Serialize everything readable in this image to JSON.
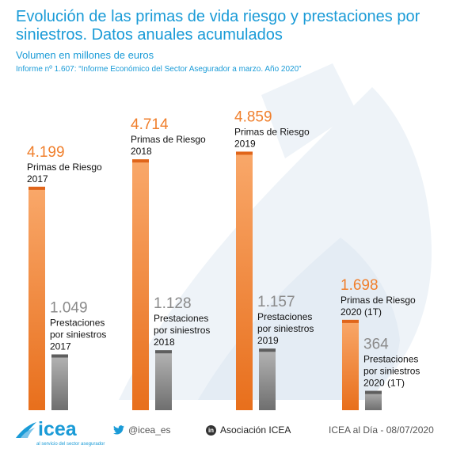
{
  "header": {
    "title": "Evolución de las primas de vida riesgo y prestaciones por siniestros. Datos anuales acumulados",
    "subtitle": "Volumen en millones de euros",
    "source": "Informe nº 1.607: “Informe Económico del Sector Asegurador a marzo. Año 2020”"
  },
  "chart_data": {
    "type": "bar",
    "title": "Evolución de las primas de vida riesgo y prestaciones por siniestros. Datos anuales acumulados",
    "subtitle": "Volumen en millones de euros",
    "categories": [
      "2017",
      "2018",
      "2019",
      "2020 (1T)"
    ],
    "series": [
      {
        "name": "Primas de Riesgo",
        "color": "#f07f2c",
        "values": [
          4199,
          4714,
          4859,
          1698
        ],
        "value_labels": [
          "4.199",
          "4.714",
          "4.859",
          "1.698"
        ],
        "labels": [
          [
            "Primas de Riesgo",
            "2017"
          ],
          [
            "Primas de Riesgo",
            "2018"
          ],
          [
            "Primas de Riesgo",
            "2019"
          ],
          [
            "Primas de Riesgo",
            "2020 (1T)"
          ]
        ]
      },
      {
        "name": "Prestaciones por siniestros",
        "color": "#8a8a8a",
        "values": [
          1049,
          1128,
          1157,
          364
        ],
        "value_labels": [
          "1.049",
          "1.128",
          "1.157",
          "364"
        ],
        "labels": [
          [
            "Prestaciones",
            "por siniestros",
            "2017"
          ],
          [
            "Prestaciones",
            "por siniestros",
            "2018"
          ],
          [
            "Prestaciones",
            "por siniestros",
            "2019"
          ],
          [
            "Prestaciones",
            "por siniestros",
            "2020 (1T)"
          ]
        ]
      }
    ],
    "axes": "none",
    "grid": false,
    "legend": "none"
  },
  "footer": {
    "logo_text": "icea",
    "logo_tagline": "al servicio del sector asegurador",
    "twitter": "@icea_es",
    "linkedin": "Asociación ICEA",
    "date": "ICEA al Día - 08/07/2020"
  },
  "colors": {
    "accent": "#1a9bd7",
    "primas": "#f07f2c",
    "prestaciones": "#8a8a8a"
  }
}
